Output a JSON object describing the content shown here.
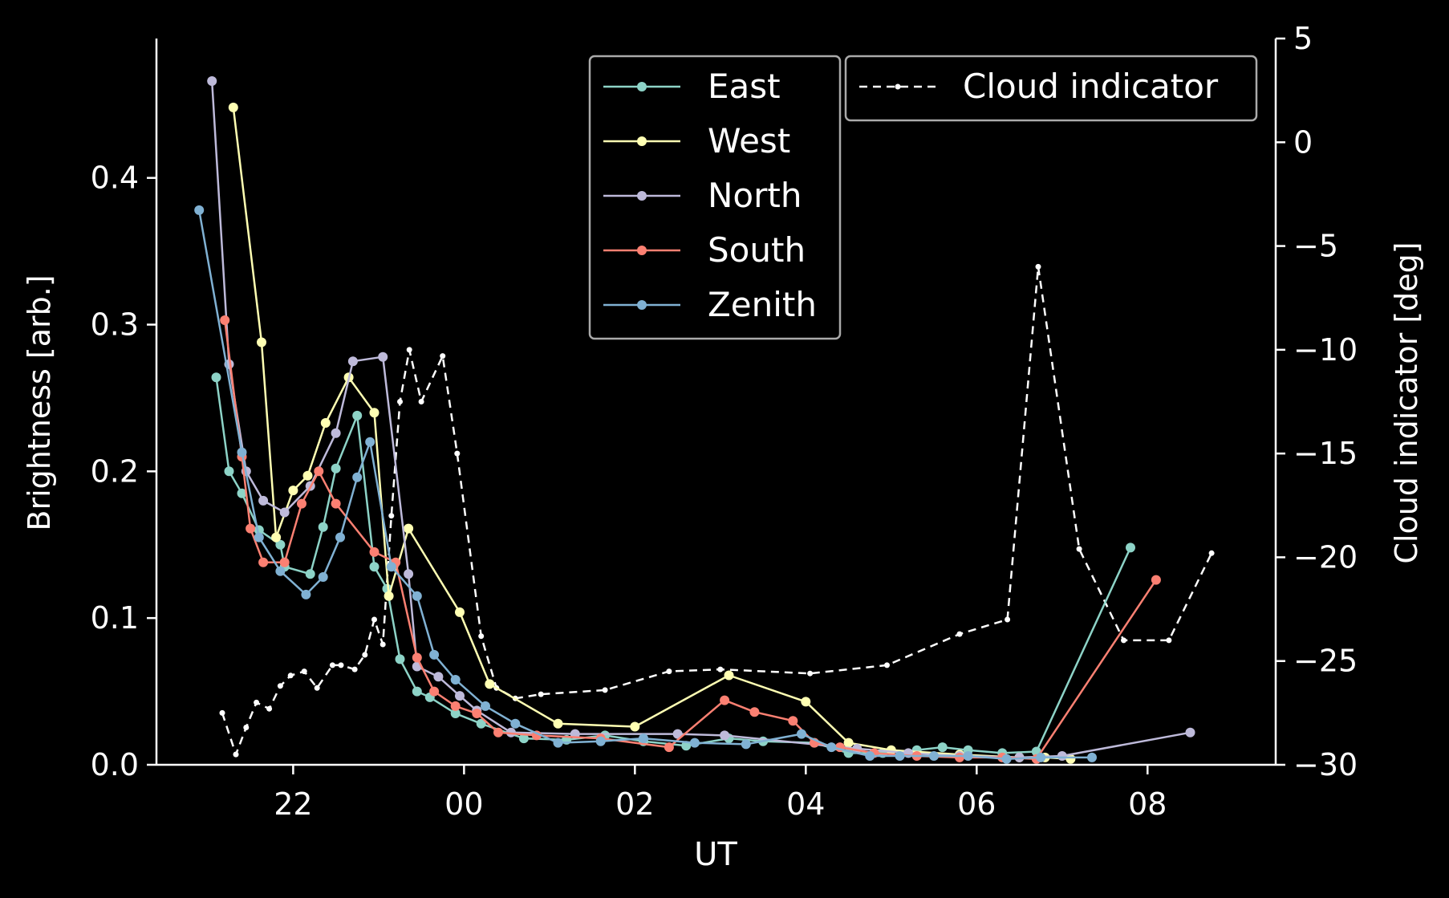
{
  "chart_data": {
    "type": "line",
    "xlabel": "UT",
    "ylabel": "Brightness [arb.]",
    "y2label": "Cloud indicator [deg]",
    "x_unit": "hours UT (night crossing midnight)",
    "x_ticks": [
      {
        "value": 22,
        "label": "22"
      },
      {
        "value": 24,
        "label": "00"
      },
      {
        "value": 26,
        "label": "02"
      },
      {
        "value": 28,
        "label": "04"
      },
      {
        "value": 30,
        "label": "06"
      },
      {
        "value": 32,
        "label": "08"
      }
    ],
    "xlim": [
      20.4,
      33.5
    ],
    "ylim": [
      0,
      0.495
    ],
    "y_ticks": [
      {
        "value": 0.0,
        "label": "0.0"
      },
      {
        "value": 0.1,
        "label": "0.1"
      },
      {
        "value": 0.2,
        "label": "0.2"
      },
      {
        "value": 0.3,
        "label": "0.3"
      },
      {
        "value": 0.4,
        "label": "0.4"
      }
    ],
    "y2lim": [
      -30,
      5
    ],
    "y2_ticks": [
      {
        "value": 5,
        "label": "5"
      },
      {
        "value": 0,
        "label": "0"
      },
      {
        "value": -5,
        "label": "−5"
      },
      {
        "value": -10,
        "label": "−10"
      },
      {
        "value": -15,
        "label": "−15"
      },
      {
        "value": -20,
        "label": "−20"
      },
      {
        "value": -25,
        "label": "−25"
      },
      {
        "value": -30,
        "label": "−30"
      }
    ],
    "grid": false,
    "legend_placement": "top-center",
    "legend2_placement": "top-right",
    "series": [
      {
        "name": "East",
        "color": "#8dd3c7",
        "axis": "left",
        "x": [
          21.1,
          21.25,
          21.4,
          21.6,
          21.85,
          21.9,
          22.2,
          22.35,
          22.5,
          22.75,
          22.95,
          23.1,
          23.25,
          23.45,
          23.6,
          23.9,
          24.2,
          24.7,
          25.2,
          25.65,
          26.1,
          26.6,
          27.1,
          27.5,
          28.1,
          28.5,
          28.9,
          29.3,
          29.6,
          29.9,
          30.3,
          30.7,
          31.8
        ],
        "y": [
          0.264,
          0.2,
          0.185,
          0.16,
          0.15,
          0.135,
          0.13,
          0.162,
          0.202,
          0.238,
          0.135,
          0.12,
          0.072,
          0.05,
          0.046,
          0.035,
          0.028,
          0.018,
          0.017,
          0.02,
          0.016,
          0.013,
          0.018,
          0.016,
          0.015,
          0.008,
          0.008,
          0.01,
          0.012,
          0.01,
          0.008,
          0.009,
          0.148
        ]
      },
      {
        "name": "West",
        "color": "#ffffb3",
        "axis": "left",
        "x": [
          21.3,
          21.63,
          21.8,
          22.0,
          22.17,
          22.38,
          22.65,
          22.95,
          23.12,
          23.35,
          23.95,
          24.3,
          25.1,
          26.0,
          27.1,
          28.0,
          28.5,
          29.0,
          29.8,
          30.5,
          30.8,
          31.1
        ],
        "y": [
          0.448,
          0.288,
          0.155,
          0.187,
          0.197,
          0.233,
          0.264,
          0.24,
          0.115,
          0.161,
          0.104,
          0.055,
          0.028,
          0.026,
          0.061,
          0.043,
          0.015,
          0.01,
          0.007,
          0.005,
          0.005,
          0.004
        ]
      },
      {
        "name": "North",
        "color": "#bebada",
        "axis": "left",
        "x": [
          21.05,
          21.25,
          21.45,
          21.65,
          21.9,
          22.2,
          22.5,
          22.7,
          23.05,
          23.35,
          23.45,
          23.7,
          23.95,
          24.15,
          24.55,
          25.3,
          26.5,
          27.05,
          28.6,
          29.2,
          29.8,
          30.5,
          31.0,
          32.5
        ],
        "y": [
          0.466,
          0.273,
          0.2,
          0.18,
          0.172,
          0.19,
          0.226,
          0.275,
          0.278,
          0.13,
          0.067,
          0.06,
          0.047,
          0.037,
          0.022,
          0.021,
          0.021,
          0.02,
          0.011,
          0.008,
          0.006,
          0.005,
          0.006,
          0.022
        ]
      },
      {
        "name": "South",
        "color": "#fb8072",
        "axis": "left",
        "x": [
          21.2,
          21.4,
          21.5,
          21.65,
          21.9,
          22.1,
          22.3,
          22.5,
          22.95,
          23.2,
          23.45,
          23.65,
          23.9,
          24.15,
          24.4,
          24.85,
          25.6,
          26.4,
          27.05,
          27.4,
          27.85,
          28.1,
          28.4,
          28.8,
          29.3,
          29.8,
          30.3,
          30.7,
          32.1
        ],
        "y": [
          0.303,
          0.21,
          0.161,
          0.138,
          0.138,
          0.178,
          0.2,
          0.178,
          0.145,
          0.138,
          0.073,
          0.05,
          0.04,
          0.035,
          0.022,
          0.02,
          0.018,
          0.012,
          0.044,
          0.036,
          0.03,
          0.015,
          0.012,
          0.008,
          0.006,
          0.005,
          0.005,
          0.004,
          0.126
        ]
      },
      {
        "name": "Zenith",
        "color": "#80b1d3",
        "axis": "left",
        "x": [
          20.9,
          21.4,
          21.6,
          21.85,
          22.15,
          22.35,
          22.55,
          22.75,
          22.9,
          23.15,
          23.45,
          23.65,
          23.9,
          24.25,
          24.6,
          25.1,
          25.6,
          26.1,
          26.7,
          27.3,
          27.95,
          28.3,
          28.75,
          29.1,
          29.5,
          29.9,
          30.35,
          30.75,
          31.35
        ],
        "y": [
          0.378,
          0.213,
          0.155,
          0.132,
          0.116,
          0.128,
          0.155,
          0.196,
          0.22,
          0.135,
          0.115,
          0.075,
          0.058,
          0.04,
          0.028,
          0.015,
          0.016,
          0.018,
          0.015,
          0.014,
          0.021,
          0.012,
          0.006,
          0.006,
          0.006,
          0.006,
          0.004,
          0.005,
          0.005
        ]
      },
      {
        "name": "Cloud indicator",
        "color": "#ffffff",
        "axis": "right",
        "dashed": true,
        "x": [
          21.17,
          21.33,
          21.45,
          21.57,
          21.72,
          21.85,
          21.97,
          22.13,
          22.28,
          22.46,
          22.56,
          22.72,
          22.84,
          22.95,
          23.05,
          23.15,
          23.25,
          23.36,
          23.5,
          23.75,
          23.92,
          24.2,
          24.38,
          24.6,
          24.9,
          25.65,
          26.4,
          27.0,
          28.05,
          28.95,
          29.8,
          30.36,
          30.72,
          31.2,
          31.72,
          32.25,
          32.75
        ],
        "y": [
          -27.5,
          -29.5,
          -28.2,
          -27.0,
          -27.3,
          -26.2,
          -25.7,
          -25.5,
          -26.3,
          -25.2,
          -25.2,
          -25.4,
          -24.7,
          -23.0,
          -24.2,
          -18.0,
          -12.5,
          -10.0,
          -12.5,
          -10.3,
          -15.0,
          -23.8,
          -26.3,
          -26.8,
          -26.6,
          -26.4,
          -25.5,
          -25.4,
          -25.6,
          -25.2,
          -23.7,
          -23.0,
          -6.0,
          -19.6,
          -24.0,
          -24.0,
          -19.8
        ]
      }
    ]
  }
}
